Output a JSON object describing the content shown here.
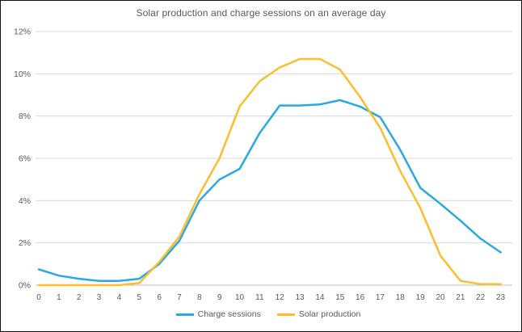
{
  "title": "Solar production and charge sessions on an average day",
  "colors": {
    "charge_sessions": "#29A8E1",
    "solar_production": "#FBBE2E",
    "title_text": "#595959",
    "axis_text": "#595959",
    "gridline": "#D9D9D9",
    "axis_line": "#BFBFBF",
    "frame_border": "#111111",
    "background": "#FFFFFF"
  },
  "chart_data": {
    "type": "line",
    "title": "Solar production and charge sessions on an average day",
    "x": [
      "0",
      "1",
      "2",
      "3",
      "4",
      "5",
      "6",
      "7",
      "8",
      "9",
      "10",
      "11",
      "12",
      "13",
      "14",
      "15",
      "16",
      "17",
      "18",
      "19",
      "20",
      "21",
      "22",
      "23"
    ],
    "xlabel": "",
    "ylabel": "",
    "ylim": [
      0,
      12
    ],
    "ytick_step": 2,
    "ytick_labels": [
      "0%",
      "2%",
      "4%",
      "6%",
      "8%",
      "10%",
      "12%"
    ],
    "grid": true,
    "legend_position": "bottom",
    "series": [
      {
        "name": "Charge sessions",
        "color_key": "charge_sessions",
        "values": [
          0.75,
          0.45,
          0.3,
          0.2,
          0.2,
          0.3,
          1.0,
          2.1,
          4.0,
          5.0,
          5.5,
          7.2,
          8.5,
          8.5,
          8.55,
          8.75,
          8.45,
          7.95,
          6.4,
          4.6,
          3.85,
          3.05,
          2.2,
          1.55
        ]
      },
      {
        "name": "Solar production",
        "color_key": "solar_production",
        "values": [
          0,
          0,
          0,
          0,
          0,
          0.1,
          1.1,
          2.3,
          4.3,
          6.0,
          8.45,
          9.65,
          10.3,
          10.7,
          10.7,
          10.2,
          8.9,
          7.45,
          5.4,
          3.65,
          1.4,
          0.2,
          0.05,
          0.05
        ]
      }
    ]
  }
}
